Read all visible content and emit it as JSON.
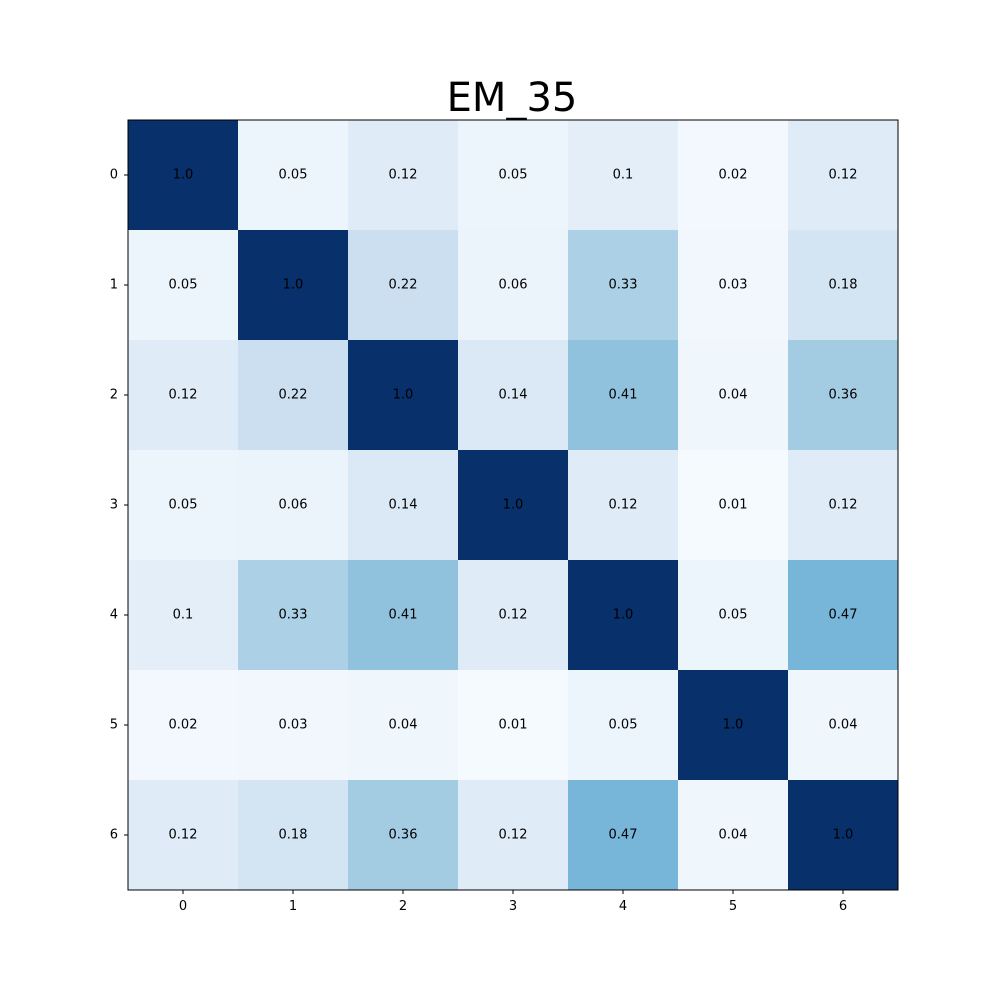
{
  "chart_data": {
    "type": "heatmap",
    "title": "EM_35",
    "xlabel": "",
    "ylabel": "",
    "x_categories": [
      "0",
      "1",
      "2",
      "3",
      "4",
      "5",
      "6"
    ],
    "y_categories": [
      "0",
      "1",
      "2",
      "3",
      "4",
      "5",
      "6"
    ],
    "values": [
      [
        1.0,
        0.05,
        0.12,
        0.05,
        0.1,
        0.02,
        0.12
      ],
      [
        0.05,
        1.0,
        0.22,
        0.06,
        0.33,
        0.03,
        0.18
      ],
      [
        0.12,
        0.22,
        1.0,
        0.14,
        0.41,
        0.04,
        0.36
      ],
      [
        0.05,
        0.06,
        0.14,
        1.0,
        0.12,
        0.01,
        0.12
      ],
      [
        0.1,
        0.33,
        0.41,
        0.12,
        1.0,
        0.05,
        0.47
      ],
      [
        0.02,
        0.03,
        0.04,
        0.01,
        0.05,
        1.0,
        0.04
      ],
      [
        0.12,
        0.18,
        0.36,
        0.12,
        0.47,
        0.04,
        1.0
      ]
    ],
    "cell_labels": [
      [
        "1.0",
        "0.05",
        "0.12",
        "0.05",
        "0.1",
        "0.02",
        "0.12"
      ],
      [
        "0.05",
        "1.0",
        "0.22",
        "0.06",
        "0.33",
        "0.03",
        "0.18"
      ],
      [
        "0.12",
        "0.22",
        "1.0",
        "0.14",
        "0.41",
        "0.04",
        "0.36"
      ],
      [
        "0.05",
        "0.06",
        "0.14",
        "1.0",
        "0.12",
        "0.01",
        "0.12"
      ],
      [
        "0.1",
        "0.33",
        "0.41",
        "0.12",
        "1.0",
        "0.05",
        "0.47"
      ],
      [
        "0.02",
        "0.03",
        "0.04",
        "0.01",
        "0.05",
        "1.0",
        "0.04"
      ],
      [
        "0.12",
        "0.18",
        "0.36",
        "0.12",
        "0.47",
        "0.04",
        "1.0"
      ]
    ],
    "colormap": "Blues",
    "value_range": [
      0,
      1
    ],
    "grid": false,
    "legend": "none"
  }
}
